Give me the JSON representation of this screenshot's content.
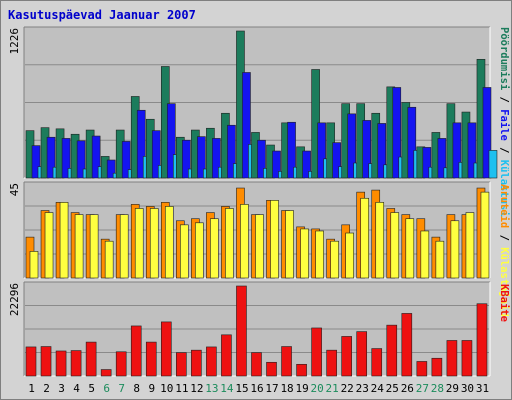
{
  "title": "Kasutuspäevad Jaanuar 2007",
  "colors": {
    "background": "#d3d3d3",
    "panel": "#c0c0c0",
    "title": "#0000cc",
    "page_views": "#1c7c5c",
    "files": "#1414f0",
    "visits": "#1ec0f0",
    "hits": "#ff8c00",
    "sites": "#ffff40",
    "kbytes": "#ee1111",
    "weekend": "#1c8c5c",
    "weekday": "#000000"
  },
  "chart_data": [
    {
      "type": "bar",
      "title": "Pöördumisi / Faile / Külastusi",
      "y_tick_label": "1226",
      "ymax": 1226,
      "legend_segments": [
        {
          "label": "Pöördumisi",
          "color": "#1c7c5c"
        },
        {
          "label": "Faile",
          "color": "#1414f0"
        },
        {
          "label": "Külastusi",
          "color": "#1ec0f0"
        }
      ],
      "x": [
        "1",
        "2",
        "3",
        "4",
        "5",
        "6",
        "7",
        "8",
        "9",
        "10",
        "11",
        "12",
        "13",
        "14",
        "15",
        "16",
        "17",
        "18",
        "19",
        "20",
        "21",
        "22",
        "23",
        "24",
        "25",
        "26",
        "27",
        "28",
        "29",
        "30",
        "31"
      ],
      "series": [
        {
          "name": "Pöördumisi",
          "color": "#1c7c5c",
          "values": [
            395,
            420,
            410,
            365,
            400,
            180,
            400,
            680,
            490,
            930,
            340,
            400,
            415,
            540,
            1226,
            380,
            275,
            460,
            260,
            905,
            460,
            620,
            620,
            540,
            760,
            630,
            260,
            380,
            620,
            550,
            990
          ]
        },
        {
          "name": "Faile",
          "color": "#1414f0",
          "values": [
            270,
            340,
            330,
            310,
            350,
            150,
            305,
            565,
            395,
            620,
            315,
            345,
            330,
            440,
            880,
            315,
            225,
            465,
            225,
            460,
            295,
            535,
            480,
            455,
            755,
            590,
            255,
            330,
            460,
            460,
            755
          ]
        },
        {
          "name": "Külastusi",
          "color": "#1ec0f0",
          "values": [
            95,
            90,
            80,
            75,
            95,
            40,
            70,
            180,
            105,
            195,
            75,
            75,
            90,
            120,
            280,
            80,
            55,
            90,
            55,
            160,
            95,
            125,
            120,
            110,
            175,
            230,
            90,
            85,
            130,
            125,
            230
          ]
        }
      ]
    },
    {
      "type": "bar",
      "title": "Aruteid / Külastajaid",
      "y_tick_label": "45",
      "ymax": 45,
      "legend_segments": [
        {
          "label": "Aruteid",
          "color": "#ff8c00"
        },
        {
          "label": "Külastajaid",
          "color": "#ffff40"
        }
      ],
      "x": [
        "1",
        "2",
        "3",
        "4",
        "5",
        "6",
        "7",
        "8",
        "9",
        "10",
        "11",
        "12",
        "13",
        "14",
        "15",
        "16",
        "17",
        "18",
        "19",
        "20",
        "21",
        "22",
        "23",
        "24",
        "25",
        "26",
        "27",
        "28",
        "29",
        "30",
        "31"
      ],
      "series": [
        {
          "name": "Aruteid",
          "color": "#ff8c00",
          "values": [
            20,
            33,
            37,
            32,
            31,
            19,
            31,
            36,
            35,
            37,
            28,
            29,
            32,
            35,
            44,
            31,
            38,
            33,
            25,
            24,
            19,
            26,
            42,
            43,
            34,
            31,
            29,
            20,
            31,
            31,
            44
          ]
        },
        {
          "name": "Külastajaid",
          "color": "#ffff40",
          "values": [
            13,
            32,
            37,
            31,
            31,
            18,
            31,
            34,
            34,
            35,
            26,
            27,
            29,
            34,
            36,
            31,
            38,
            33,
            24,
            23,
            18,
            22,
            39,
            37,
            32,
            29,
            23,
            18,
            28,
            32,
            42
          ]
        }
      ]
    },
    {
      "type": "bar",
      "title": "KBaite",
      "y_tick_label": "22296",
      "ymax": 22296,
      "legend_segments": [
        {
          "label": "KBaite",
          "color": "#ee1111"
        }
      ],
      "x": [
        "1",
        "2",
        "3",
        "4",
        "5",
        "6",
        "7",
        "8",
        "9",
        "10",
        "11",
        "12",
        "13",
        "14",
        "15",
        "16",
        "17",
        "18",
        "19",
        "20",
        "21",
        "22",
        "23",
        "24",
        "25",
        "26",
        "27",
        "28",
        "29",
        "30",
        "31"
      ],
      "series": [
        {
          "name": "KBaite",
          "color": "#ee1111",
          "values": [
            7200,
            7300,
            6200,
            6300,
            8400,
            1600,
            6000,
            12400,
            8400,
            13400,
            5800,
            6400,
            7200,
            10200,
            22296,
            5800,
            3400,
            7300,
            2900,
            11900,
            6400,
            9800,
            11000,
            6800,
            12600,
            15500,
            3600,
            4400,
            8800,
            8800,
            17900
          ]
        }
      ]
    }
  ],
  "x_axis": {
    "labels": [
      "1",
      "2",
      "3",
      "4",
      "5",
      "6",
      "7",
      "8",
      "9",
      "10",
      "11",
      "12",
      "13",
      "14",
      "15",
      "16",
      "17",
      "18",
      "19",
      "20",
      "21",
      "22",
      "23",
      "24",
      "25",
      "26",
      "27",
      "28",
      "29",
      "30",
      "31"
    ],
    "weekend": [
      false,
      false,
      false,
      false,
      false,
      true,
      true,
      false,
      false,
      false,
      false,
      false,
      true,
      true,
      false,
      false,
      false,
      false,
      false,
      true,
      true,
      false,
      false,
      false,
      false,
      false,
      true,
      true,
      false,
      false,
      false
    ]
  }
}
